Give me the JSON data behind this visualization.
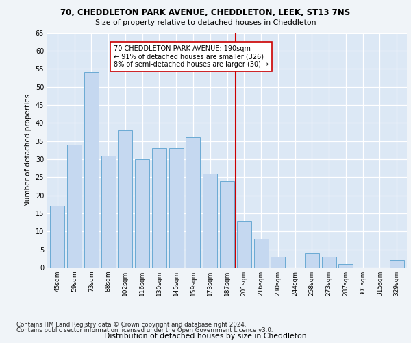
{
  "title1": "70, CHEDDLETON PARK AVENUE, CHEDDLETON, LEEK, ST13 7NS",
  "title2": "Size of property relative to detached houses in Cheddleton",
  "xlabel": "Distribution of detached houses by size in Cheddleton",
  "ylabel": "Number of detached properties",
  "categories": [
    "45sqm",
    "59sqm",
    "73sqm",
    "88sqm",
    "102sqm",
    "116sqm",
    "130sqm",
    "145sqm",
    "159sqm",
    "173sqm",
    "187sqm",
    "201sqm",
    "216sqm",
    "230sqm",
    "244sqm",
    "258sqm",
    "273sqm",
    "287sqm",
    "301sqm",
    "315sqm",
    "329sqm"
  ],
  "values": [
    17,
    34,
    54,
    31,
    38,
    30,
    33,
    33,
    36,
    26,
    24,
    13,
    8,
    3,
    0,
    4,
    3,
    1,
    0,
    0,
    2
  ],
  "bar_color": "#c5d8f0",
  "bar_edge_color": "#6aaad4",
  "ref_line_x": 10.5,
  "ref_line_color": "#cc0000",
  "annotation_text": "70 CHEDDLETON PARK AVENUE: 190sqm\n← 91% of detached houses are smaller (326)\n8% of semi-detached houses are larger (30) →",
  "ylim": [
    0,
    65
  ],
  "yticks": [
    0,
    5,
    10,
    15,
    20,
    25,
    30,
    35,
    40,
    45,
    50,
    55,
    60,
    65
  ],
  "footer1": "Contains HM Land Registry data © Crown copyright and database right 2024.",
  "footer2": "Contains public sector information licensed under the Open Government Licence v3.0.",
  "plot_bg_color": "#dce8f5",
  "fig_bg_color": "#f0f4f8"
}
